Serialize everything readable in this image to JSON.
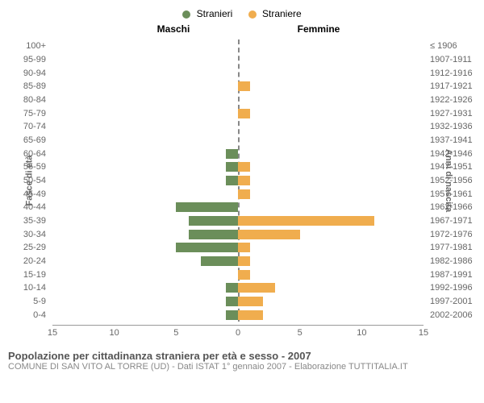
{
  "legend": {
    "male": {
      "label": "Stranieri",
      "color": "#6b8e5a"
    },
    "female": {
      "label": "Straniere",
      "color": "#f0ad4e"
    }
  },
  "headers": {
    "left": "Maschi",
    "right": "Femmine"
  },
  "axis_labels": {
    "left": "Fasce di età",
    "right": "Anni di nascita"
  },
  "chart": {
    "xmax": 15,
    "xticks": [
      15,
      10,
      5,
      0,
      5,
      10,
      15
    ],
    "grid_color": "#e0e0e0",
    "bar_male_color": "#6b8e5a",
    "bar_female_color": "#f0ad4e",
    "rows": [
      {
        "age": "100+",
        "birth": "≤ 1906",
        "m": 0,
        "f": 0
      },
      {
        "age": "95-99",
        "birth": "1907-1911",
        "m": 0,
        "f": 0
      },
      {
        "age": "90-94",
        "birth": "1912-1916",
        "m": 0,
        "f": 0
      },
      {
        "age": "85-89",
        "birth": "1917-1921",
        "m": 0,
        "f": 1
      },
      {
        "age": "80-84",
        "birth": "1922-1926",
        "m": 0,
        "f": 0
      },
      {
        "age": "75-79",
        "birth": "1927-1931",
        "m": 0,
        "f": 1
      },
      {
        "age": "70-74",
        "birth": "1932-1936",
        "m": 0,
        "f": 0
      },
      {
        "age": "65-69",
        "birth": "1937-1941",
        "m": 0,
        "f": 0
      },
      {
        "age": "60-64",
        "birth": "1942-1946",
        "m": 1,
        "f": 0
      },
      {
        "age": "55-59",
        "birth": "1947-1951",
        "m": 1,
        "f": 1
      },
      {
        "age": "50-54",
        "birth": "1952-1956",
        "m": 1,
        "f": 1
      },
      {
        "age": "45-49",
        "birth": "1957-1961",
        "m": 0,
        "f": 1
      },
      {
        "age": "40-44",
        "birth": "1962-1966",
        "m": 5,
        "f": 0
      },
      {
        "age": "35-39",
        "birth": "1967-1971",
        "m": 4,
        "f": 11
      },
      {
        "age": "30-34",
        "birth": "1972-1976",
        "m": 4,
        "f": 5
      },
      {
        "age": "25-29",
        "birth": "1977-1981",
        "m": 5,
        "f": 1
      },
      {
        "age": "20-24",
        "birth": "1982-1986",
        "m": 3,
        "f": 1
      },
      {
        "age": "15-19",
        "birth": "1987-1991",
        "m": 0,
        "f": 1
      },
      {
        "age": "10-14",
        "birth": "1992-1996",
        "m": 1,
        "f": 3
      },
      {
        "age": "5-9",
        "birth": "1997-2001",
        "m": 1,
        "f": 2
      },
      {
        "age": "0-4",
        "birth": "2002-2006",
        "m": 1,
        "f": 2
      }
    ]
  },
  "caption": {
    "title": "Popolazione per cittadinanza straniera per età e sesso - 2007",
    "subtitle": "COMUNE DI SAN VITO AL TORRE (UD) - Dati ISTAT 1° gennaio 2007 - Elaborazione TUTTITALIA.IT"
  }
}
